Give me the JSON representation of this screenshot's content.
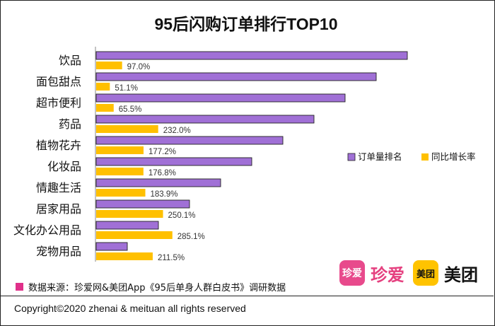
{
  "chart_data": {
    "type": "bar",
    "orientation": "horizontal",
    "title": "95后闪购订单排行TOP10",
    "categories": [
      "饮品",
      "面包甜点",
      "超市便利",
      "药品",
      "植物花卉",
      "化妆品",
      "情趣生活",
      "居家用品",
      "文化办公用品",
      "宠物用品"
    ],
    "series": [
      {
        "name": "订单量排名",
        "color": "#a070d6",
        "values": [
          10,
          9,
          8,
          7,
          6,
          5,
          4,
          3,
          2,
          1
        ]
      },
      {
        "name": "同比增长率",
        "color": "#ffc000",
        "values": [
          97.0,
          51.1,
          65.5,
          232.0,
          177.2,
          176.8,
          183.9,
          250.1,
          285.1,
          211.5
        ],
        "labels": [
          "97.0%",
          "51.1%",
          "65.5%",
          "232.0%",
          "177.2%",
          "176.8%",
          "183.9%",
          "250.1%",
          "285.1%",
          "211.5%"
        ]
      }
    ],
    "legend_position": "right"
  },
  "footer": {
    "source": "数据来源：珍爱网&美团App《95后单身人群白皮书》调研数据",
    "copyright": "Copyright©2020 zhenai & meituan all rights reserved"
  },
  "logos": {
    "zhenai_icon": "珍爱",
    "zhenai_word": "珍爱",
    "meituan_icon": "美团",
    "meituan_word": "美团"
  }
}
